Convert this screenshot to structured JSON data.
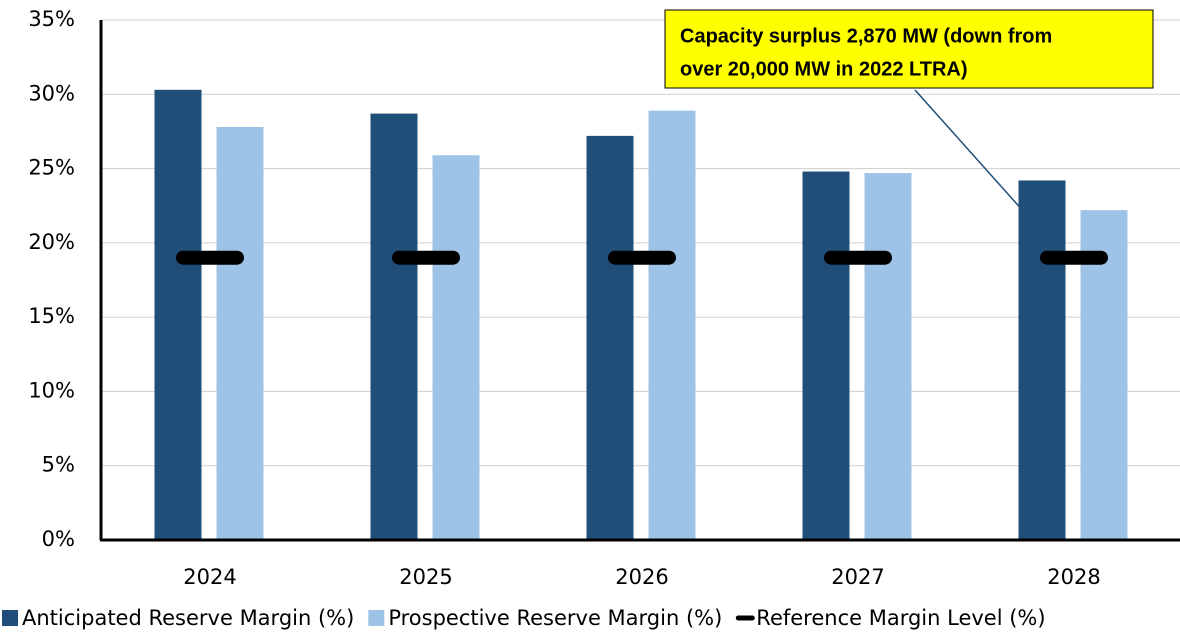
{
  "chart_data": {
    "type": "bar",
    "categories": [
      "2024",
      "2025",
      "2026",
      "2027",
      "2028"
    ],
    "series": [
      {
        "name": "Anticipated Reserve Margin (%)",
        "color": "#1f4e79",
        "values": [
          30.3,
          28.7,
          27.2,
          24.8,
          24.2
        ]
      },
      {
        "name": "Prospective Reserve Margin (%)",
        "color": "#9dc3e6",
        "values": [
          27.8,
          25.9,
          28.9,
          24.7,
          22.2
        ]
      },
      {
        "name": "Reference Margin Level (%)",
        "color": "#000000",
        "marker": "dash",
        "values": [
          19.0,
          19.0,
          19.0,
          19.0,
          19.0
        ]
      }
    ],
    "ylim": [
      0,
      35
    ],
    "yticks": [
      {
        "value": 0,
        "label": "0%"
      },
      {
        "value": 5,
        "label": "5%"
      },
      {
        "value": 10,
        "label": "10%"
      },
      {
        "value": 15,
        "label": "15%"
      },
      {
        "value": 20,
        "label": "20%"
      },
      {
        "value": 25,
        "label": "25%"
      },
      {
        "value": 30,
        "label": "30%"
      },
      {
        "value": 35,
        "label": "35%"
      }
    ],
    "grid": true,
    "legend": "bottom",
    "annotation": {
      "lines": [
        "Capacity surplus 2,870 MW (down from",
        "over 20,000 MW in 2022 LTRA)"
      ],
      "color": "#ffff00"
    }
  }
}
